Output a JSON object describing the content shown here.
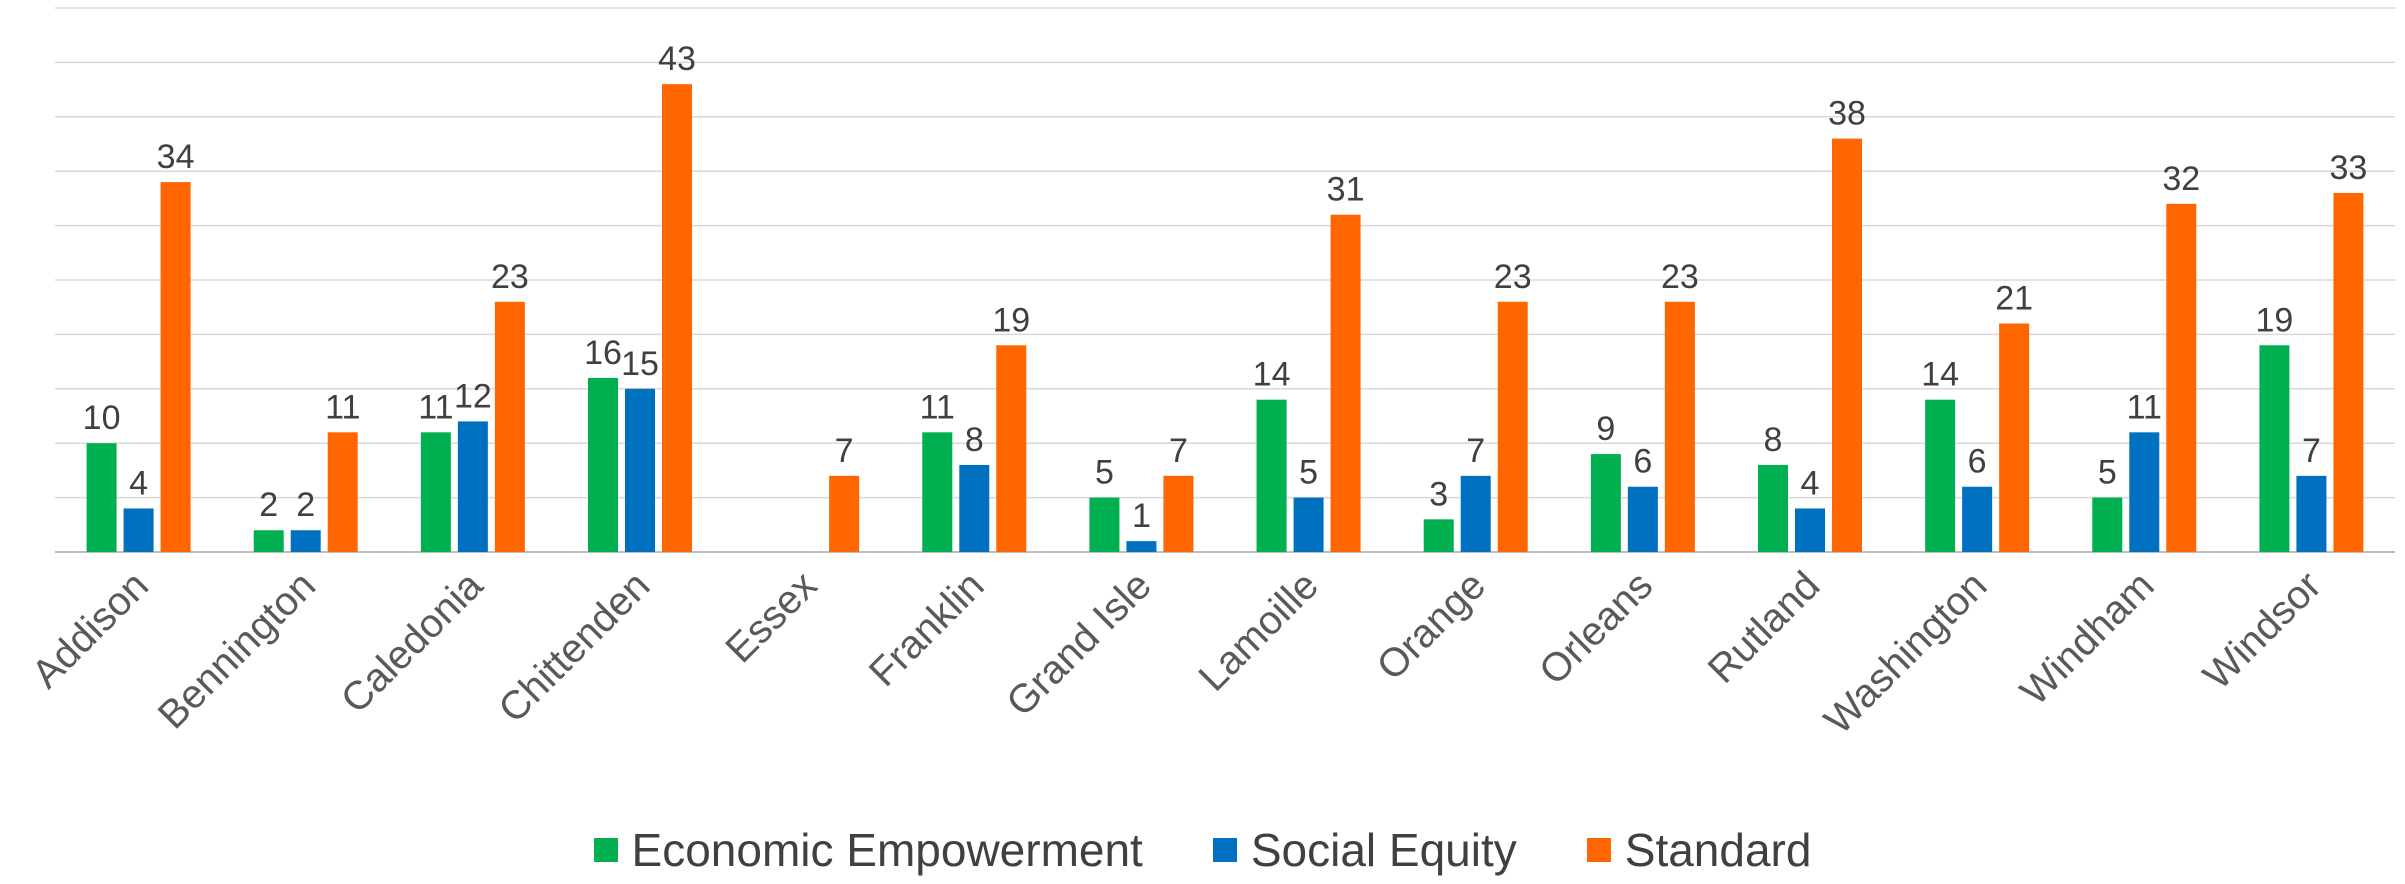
{
  "chart_data": {
    "type": "bar",
    "title": "",
    "xlabel": "",
    "ylabel": "",
    "ylim": [
      0,
      50
    ],
    "grid": true,
    "legend_position": "bottom",
    "categories": [
      "Addison",
      "Bennington",
      "Caledonia",
      "Chittenden",
      "Essex",
      "Franklin",
      "Grand Isle",
      "Lamoille",
      "Orange",
      "Orleans",
      "Rutland",
      "Washington",
      "Windham",
      "Windsor"
    ],
    "series": [
      {
        "name": "Economic Empowerment",
        "color": "#00b050",
        "values": [
          10,
          2,
          11,
          16,
          null,
          11,
          5,
          14,
          3,
          9,
          8,
          14,
          5,
          19
        ]
      },
      {
        "name": "Social Equity",
        "color": "#0070c0",
        "values": [
          4,
          2,
          12,
          15,
          null,
          8,
          1,
          5,
          7,
          6,
          4,
          6,
          11,
          7
        ]
      },
      {
        "name": "Standard",
        "color": "#ff6600",
        "values": [
          34,
          11,
          23,
          43,
          7,
          19,
          7,
          31,
          23,
          23,
          38,
          21,
          32,
          33
        ]
      }
    ]
  }
}
